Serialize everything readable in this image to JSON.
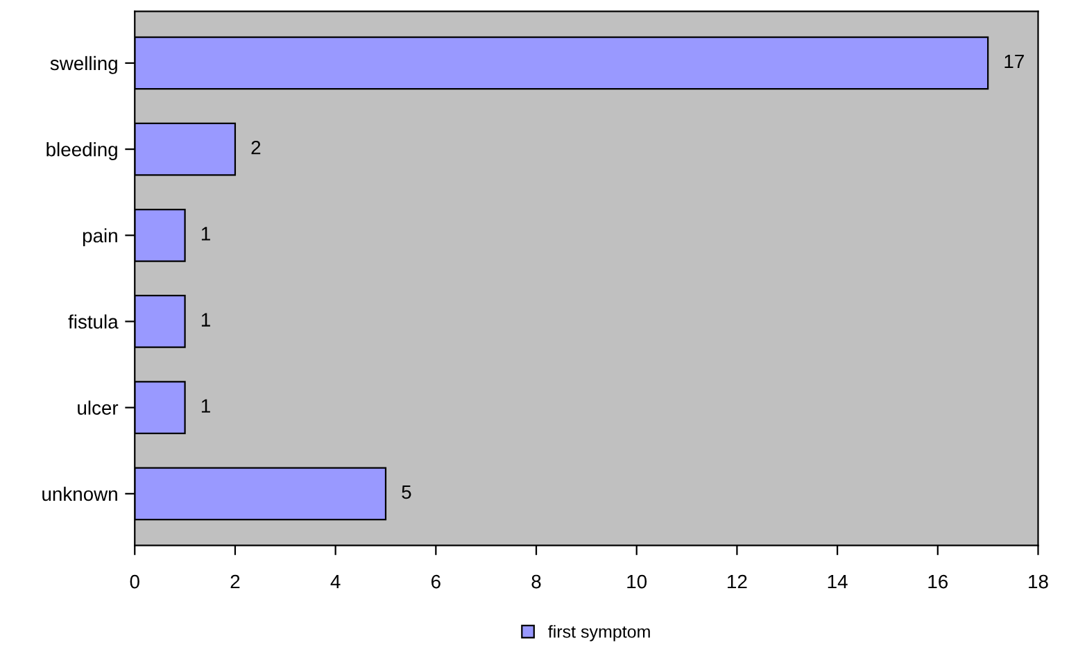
{
  "chart_data": {
    "type": "bar",
    "orientation": "horizontal",
    "categories": [
      "swelling",
      "bleeding",
      "pain",
      "fistula",
      "ulcer",
      "unknown"
    ],
    "series": [
      {
        "name": "first symptom",
        "color": "#9999ff",
        "values": [
          17,
          2,
          1,
          1,
          1,
          5
        ]
      }
    ],
    "xlim": [
      0,
      18
    ],
    "xticks": [
      0,
      2,
      4,
      6,
      8,
      10,
      12,
      14,
      16,
      18
    ],
    "data_labels": true,
    "grid": false,
    "legend": "bottom"
  }
}
